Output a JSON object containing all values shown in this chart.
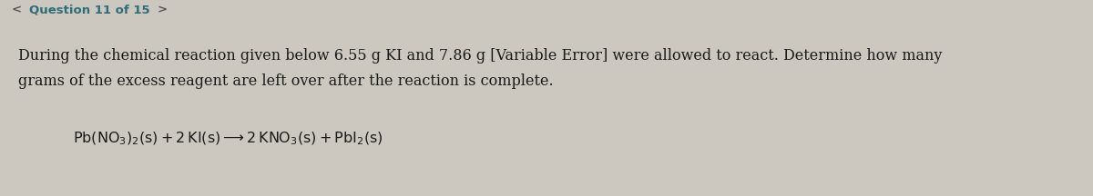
{
  "background_color": "#ccc8bf",
  "header_text": "Question 11 of 15",
  "header_color": "#2e6e7a",
  "nav_color": "#555555",
  "text_color": "#1a1a1a",
  "body_line1": "During the chemical reaction given below 6.55 g KI and 7.86 g [Variable Error] were allowed to react. Determine how many",
  "body_line2": "grams of the excess reagent are left over after the reaction is complete.",
  "equation": "$\\mathrm{Pb(NO_3)_2(s) + 2\\,KI(s) \\longrightarrow 2\\,KNO_3(s) + PbI_2(s)}$",
  "font_size_header": 9.5,
  "font_size_body": 11.5,
  "font_size_equation": 11.5
}
